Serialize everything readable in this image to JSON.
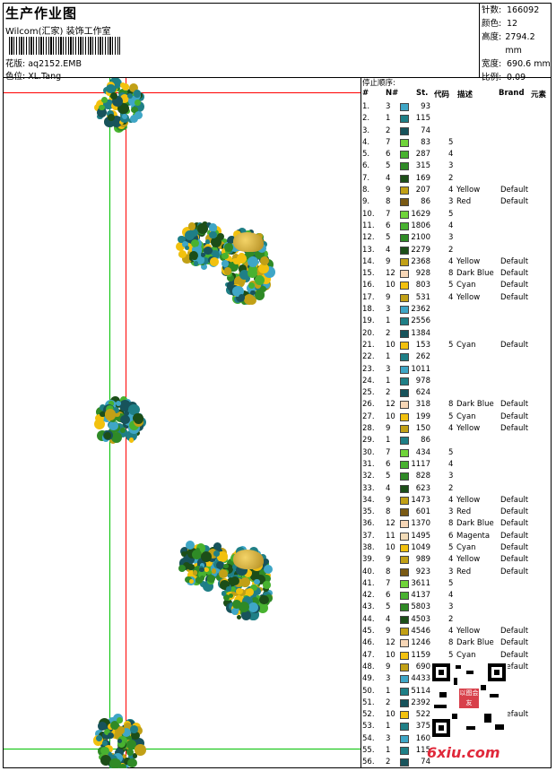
{
  "header": {
    "title": "生产作业图",
    "studio": "Wilcom(汇家) 装饰工作室",
    "design_label": "花版:",
    "design_value": "aq2152.EMB",
    "color_label": "色位:",
    "color_value": "XL.Tang"
  },
  "stats": [
    {
      "k": "针数:",
      "v": "166092"
    },
    {
      "k": "颜色:",
      "v": "12"
    },
    {
      "k": "高度:",
      "v": "2794.2 mm"
    },
    {
      "k": "宽度:",
      "v": "690.6 mm"
    },
    {
      "k": "比例:",
      "v": "0.09"
    }
  ],
  "table": {
    "caption": "停止顺序:",
    "headers": {
      "num": "#",
      "n": "N#",
      "st": "St.",
      "code": "代码",
      "desc": "描述",
      "brand": "Brand",
      "elem": "元素"
    },
    "rows": [
      {
        "i": "1.",
        "n": "3",
        "st": "93",
        "code": "",
        "desc": "",
        "brand": "",
        "color": "#3fa6c6"
      },
      {
        "i": "2.",
        "n": "1",
        "st": "115",
        "code": "",
        "desc": "",
        "brand": "",
        "color": "#1f7f86"
      },
      {
        "i": "3.",
        "n": "2",
        "st": "74",
        "code": "",
        "desc": "",
        "brand": "",
        "color": "#17535b"
      },
      {
        "i": "4.",
        "n": "7",
        "st": "83",
        "code": "5",
        "desc": "",
        "brand": "",
        "color": "#6fd43a"
      },
      {
        "i": "5.",
        "n": "6",
        "st": "287",
        "code": "4",
        "desc": "",
        "brand": "",
        "color": "#48b230"
      },
      {
        "i": "6.",
        "n": "5",
        "st": "315",
        "code": "3",
        "desc": "",
        "brand": "",
        "color": "#2f8a26"
      },
      {
        "i": "7.",
        "n": "4",
        "st": "169",
        "code": "2",
        "desc": "",
        "brand": "",
        "color": "#1c4e18"
      },
      {
        "i": "8.",
        "n": "9",
        "st": "207",
        "code": "4",
        "desc": "Yellow",
        "brand": "Default",
        "color": "#c1a016"
      },
      {
        "i": "9.",
        "n": "8",
        "st": "86",
        "code": "3",
        "desc": "Red",
        "brand": "Default",
        "color": "#7a5a14"
      },
      {
        "i": "10.",
        "n": "7",
        "st": "1629",
        "code": "5",
        "desc": "",
        "brand": "",
        "color": "#6fd43a"
      },
      {
        "i": "11.",
        "n": "6",
        "st": "1806",
        "code": "4",
        "desc": "",
        "brand": "",
        "color": "#48b230"
      },
      {
        "i": "12.",
        "n": "5",
        "st": "2100",
        "code": "3",
        "desc": "",
        "brand": "",
        "color": "#2f8a26"
      },
      {
        "i": "13.",
        "n": "4",
        "st": "2279",
        "code": "2",
        "desc": "",
        "brand": "",
        "color": "#1c4e18"
      },
      {
        "i": "14.",
        "n": "9",
        "st": "2368",
        "code": "4",
        "desc": "Yellow",
        "brand": "Default",
        "color": "#c1a016"
      },
      {
        "i": "15.",
        "n": "12",
        "st": "928",
        "code": "8",
        "desc": "Dark Blue",
        "brand": "Default",
        "color": "#f6d6b6"
      },
      {
        "i": "16.",
        "n": "10",
        "st": "803",
        "code": "5",
        "desc": "Cyan",
        "brand": "Default",
        "color": "#f2c10e"
      },
      {
        "i": "17.",
        "n": "9",
        "st": "531",
        "code": "4",
        "desc": "Yellow",
        "brand": "Default",
        "color": "#c1a016"
      },
      {
        "i": "18.",
        "n": "3",
        "st": "2362",
        "code": "",
        "desc": "",
        "brand": "",
        "color": "#3fa6c6"
      },
      {
        "i": "19.",
        "n": "1",
        "st": "2556",
        "code": "",
        "desc": "",
        "brand": "",
        "color": "#1f7f86"
      },
      {
        "i": "20.",
        "n": "2",
        "st": "1384",
        "code": "",
        "desc": "",
        "brand": "",
        "color": "#17535b"
      },
      {
        "i": "21.",
        "n": "10",
        "st": "153",
        "code": "5",
        "desc": "Cyan",
        "brand": "Default",
        "color": "#f2c10e"
      },
      {
        "i": "22.",
        "n": "1",
        "st": "262",
        "code": "",
        "desc": "",
        "brand": "",
        "color": "#1f7f86"
      },
      {
        "i": "23.",
        "n": "3",
        "st": "1011",
        "code": "",
        "desc": "",
        "brand": "",
        "color": "#3fa6c6"
      },
      {
        "i": "24.",
        "n": "1",
        "st": "978",
        "code": "",
        "desc": "",
        "brand": "",
        "color": "#1f7f86"
      },
      {
        "i": "25.",
        "n": "2",
        "st": "624",
        "code": "",
        "desc": "",
        "brand": "",
        "color": "#17535b"
      },
      {
        "i": "26.",
        "n": "12",
        "st": "318",
        "code": "8",
        "desc": "Dark Blue",
        "brand": "Default",
        "color": "#f6d6b6"
      },
      {
        "i": "27.",
        "n": "10",
        "st": "199",
        "code": "5",
        "desc": "Cyan",
        "brand": "Default",
        "color": "#f2c10e"
      },
      {
        "i": "28.",
        "n": "9",
        "st": "150",
        "code": "4",
        "desc": "Yellow",
        "brand": "Default",
        "color": "#c1a016"
      },
      {
        "i": "29.",
        "n": "1",
        "st": "86",
        "code": "",
        "desc": "",
        "brand": "",
        "color": "#1f7f86"
      },
      {
        "i": "30.",
        "n": "7",
        "st": "434",
        "code": "5",
        "desc": "",
        "brand": "",
        "color": "#6fd43a"
      },
      {
        "i": "31.",
        "n": "6",
        "st": "1117",
        "code": "4",
        "desc": "",
        "brand": "",
        "color": "#48b230"
      },
      {
        "i": "32.",
        "n": "5",
        "st": "828",
        "code": "3",
        "desc": "",
        "brand": "",
        "color": "#2f8a26"
      },
      {
        "i": "33.",
        "n": "4",
        "st": "623",
        "code": "2",
        "desc": "",
        "brand": "",
        "color": "#1c4e18"
      },
      {
        "i": "34.",
        "n": "9",
        "st": "1473",
        "code": "4",
        "desc": "Yellow",
        "brand": "Default",
        "color": "#c1a016"
      },
      {
        "i": "35.",
        "n": "8",
        "st": "601",
        "code": "3",
        "desc": "Red",
        "brand": "Default",
        "color": "#7a5a14"
      },
      {
        "i": "36.",
        "n": "12",
        "st": "1370",
        "code": "8",
        "desc": "Dark Blue",
        "brand": "Default",
        "color": "#f6d6b6"
      },
      {
        "i": "37.",
        "n": "11",
        "st": "1495",
        "code": "6",
        "desc": "Magenta",
        "brand": "Default",
        "color": "#f3dcb8"
      },
      {
        "i": "38.",
        "n": "10",
        "st": "1049",
        "code": "5",
        "desc": "Cyan",
        "brand": "Default",
        "color": "#f2c10e"
      },
      {
        "i": "39.",
        "n": "9",
        "st": "989",
        "code": "4",
        "desc": "Yellow",
        "brand": "Default",
        "color": "#c1a016"
      },
      {
        "i": "40.",
        "n": "8",
        "st": "923",
        "code": "3",
        "desc": "Red",
        "brand": "Default",
        "color": "#7a5a14"
      },
      {
        "i": "41.",
        "n": "7",
        "st": "3611",
        "code": "5",
        "desc": "",
        "brand": "",
        "color": "#6fd43a"
      },
      {
        "i": "42.",
        "n": "6",
        "st": "4137",
        "code": "4",
        "desc": "",
        "brand": "",
        "color": "#48b230"
      },
      {
        "i": "43.",
        "n": "5",
        "st": "5803",
        "code": "3",
        "desc": "",
        "brand": "",
        "color": "#2f8a26"
      },
      {
        "i": "44.",
        "n": "4",
        "st": "4503",
        "code": "2",
        "desc": "",
        "brand": "",
        "color": "#1c4e18"
      },
      {
        "i": "45.",
        "n": "9",
        "st": "4546",
        "code": "4",
        "desc": "Yellow",
        "brand": "Default",
        "color": "#c1a016"
      },
      {
        "i": "46.",
        "n": "12",
        "st": "1246",
        "code": "8",
        "desc": "Dark Blue",
        "brand": "Default",
        "color": "#f6d6b6"
      },
      {
        "i": "47.",
        "n": "10",
        "st": "1159",
        "code": "5",
        "desc": "Cyan",
        "brand": "Default",
        "color": "#f2c10e"
      },
      {
        "i": "48.",
        "n": "9",
        "st": "690",
        "code": "",
        "desc": "",
        "brand": "Default",
        "color": "#c1a016"
      },
      {
        "i": "49.",
        "n": "3",
        "st": "4433",
        "code": "",
        "desc": "",
        "brand": "",
        "color": "#3fa6c6"
      },
      {
        "i": "50.",
        "n": "1",
        "st": "5114",
        "code": "",
        "desc": "",
        "brand": "",
        "color": "#1f7f86"
      },
      {
        "i": "51.",
        "n": "2",
        "st": "2392",
        "code": "",
        "desc": "",
        "brand": "",
        "color": "#17535b"
      },
      {
        "i": "52.",
        "n": "10",
        "st": "522",
        "code": "",
        "desc": "",
        "brand": "Default",
        "color": "#f2c10e"
      },
      {
        "i": "53.",
        "n": "1",
        "st": "375",
        "code": "",
        "desc": "",
        "brand": "",
        "color": "#1f7f86"
      },
      {
        "i": "54.",
        "n": "3",
        "st": "160",
        "code": "",
        "desc": "",
        "brand": "",
        "color": "#3fa6c6"
      },
      {
        "i": "55.",
        "n": "1",
        "st": "115",
        "code": "",
        "desc": "",
        "brand": "",
        "color": "#1f7f86"
      },
      {
        "i": "56.",
        "n": "2",
        "st": "74",
        "code": "",
        "desc": "",
        "brand": "",
        "color": "#17535b"
      }
    ]
  },
  "watermark": {
    "site": "6xiu.com",
    "stamp": "以图会友"
  },
  "colors": {
    "guide_green": "#00c000",
    "guide_red": "#ff0000"
  }
}
